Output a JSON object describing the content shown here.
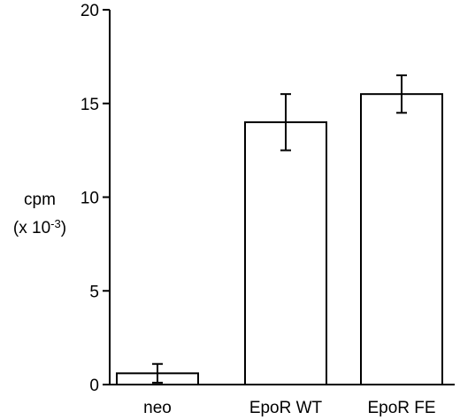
{
  "chart_data": {
    "type": "bar",
    "categories": [
      "neo",
      "EpoR WT",
      "EpoR FE"
    ],
    "values": [
      0.6,
      14.0,
      15.5
    ],
    "errors": [
      0.5,
      1.5,
      1.0
    ],
    "ylabel_line1": "cpm",
    "ylabel_line2_prefix": "(x 10",
    "ylabel_line2_exp": "-3",
    "ylabel_line2_suffix": ")",
    "ylim": [
      0,
      20
    ],
    "yticks": [
      0,
      5,
      10,
      15,
      20
    ],
    "grid": false,
    "bar_fill": "#ffffff",
    "bar_stroke": "#000000"
  }
}
